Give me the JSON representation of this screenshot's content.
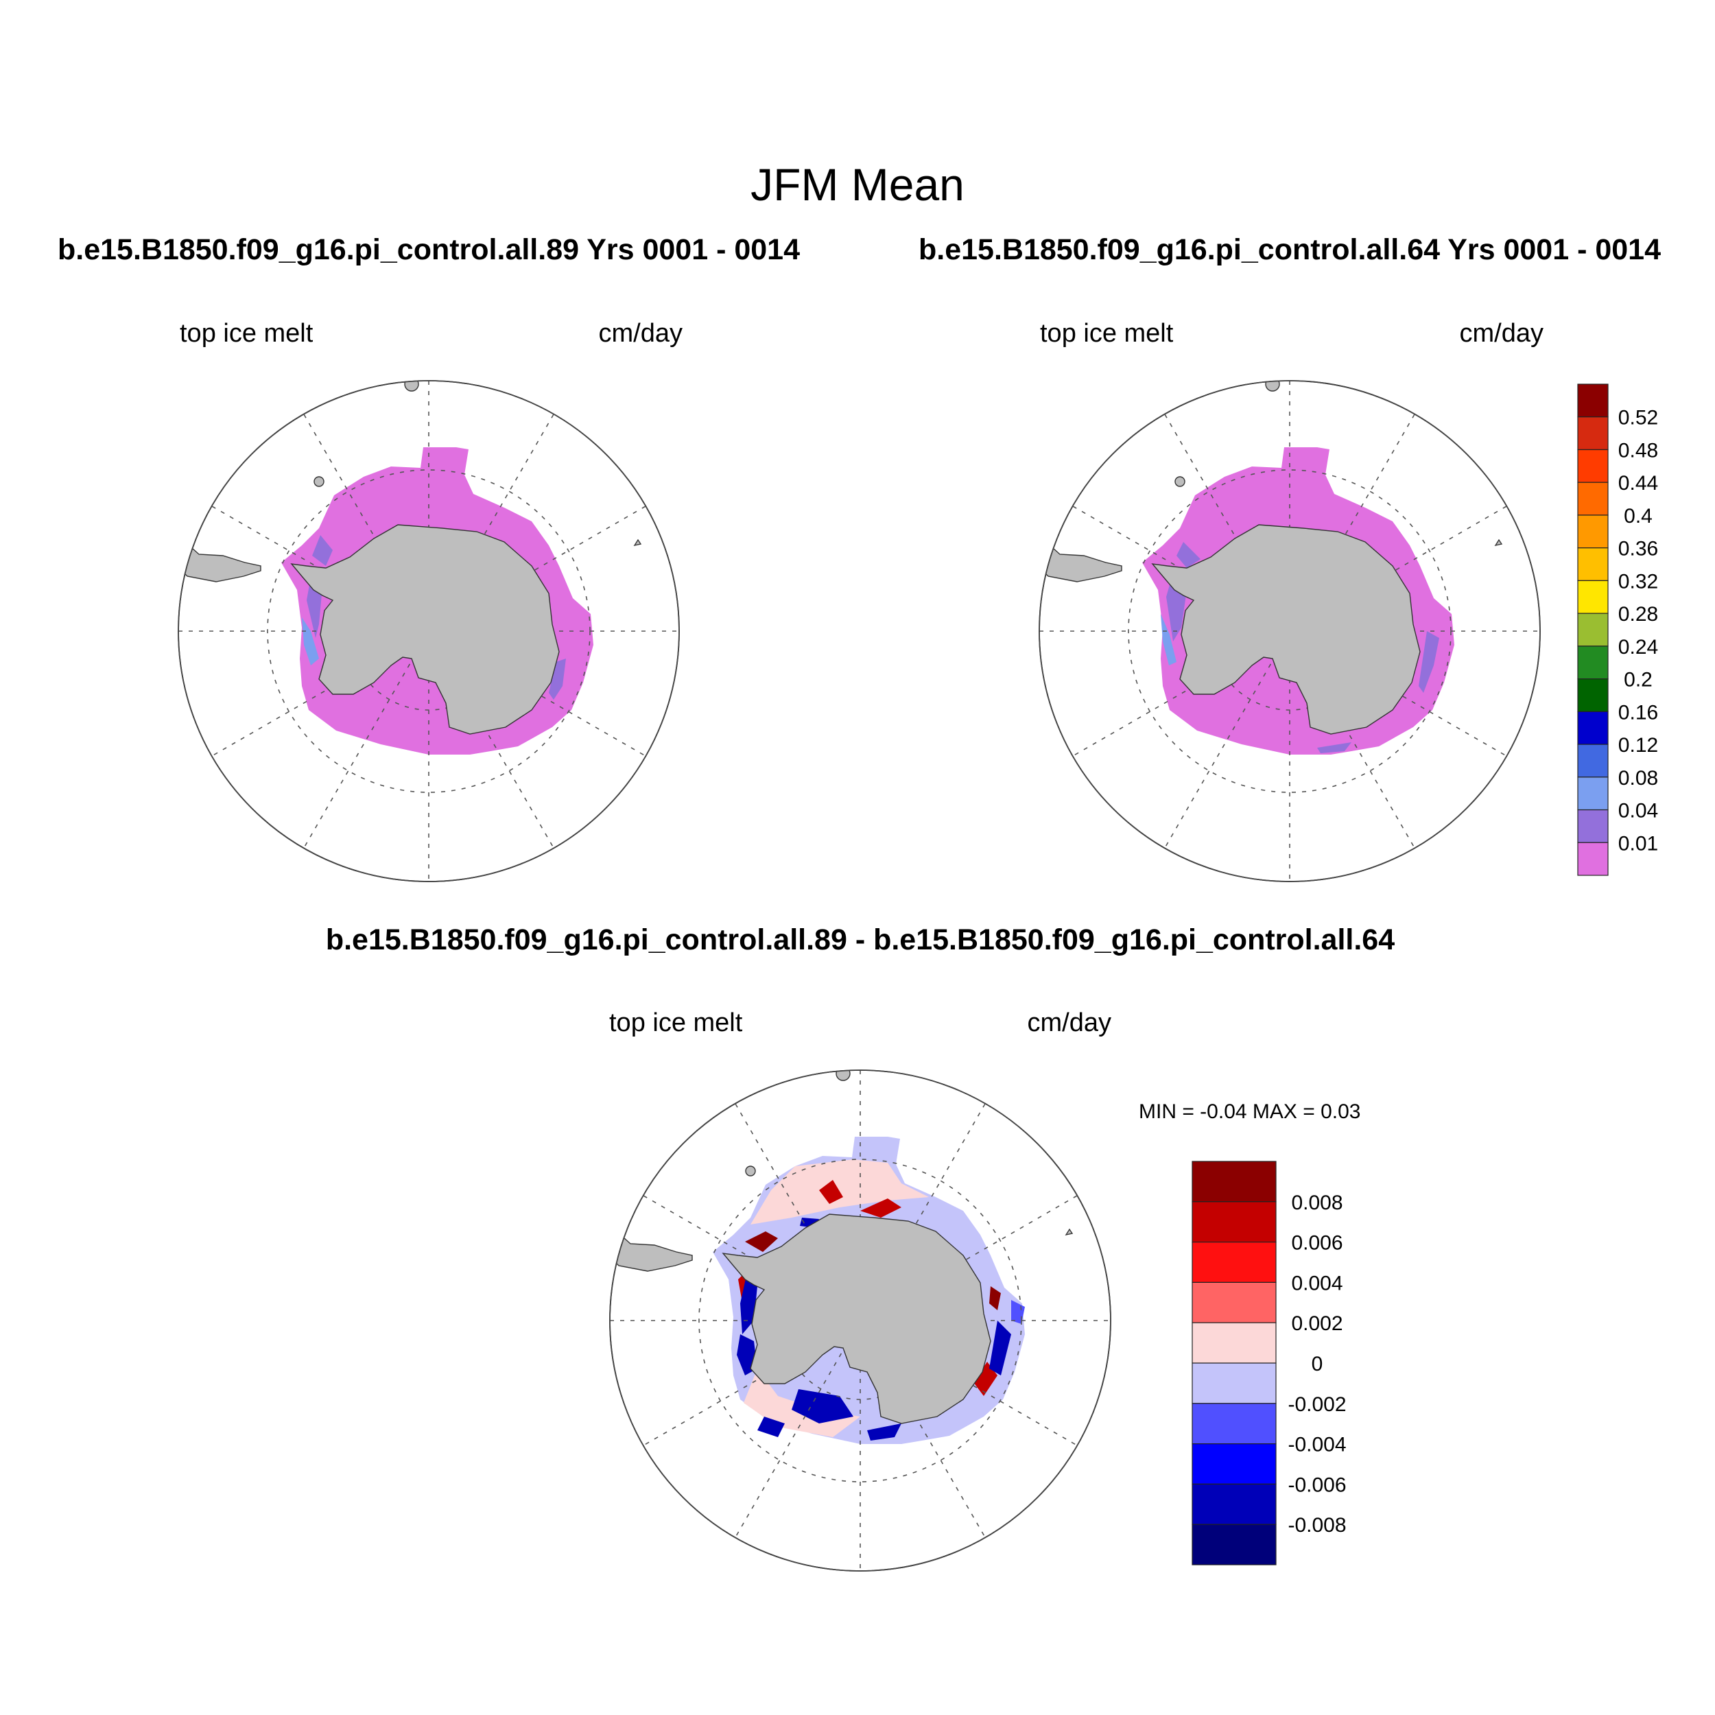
{
  "figure": {
    "title": "JFM Mean",
    "panel_left": {
      "case_title": "b.e15.B1850.f09_g16.pi_control.all.89  Yrs 0001 - 0014",
      "variable": "top ice melt",
      "units": "cm/day"
    },
    "panel_right": {
      "case_title": "b.e15.B1850.f09_g16.pi_control.all.64  Yrs 0001 - 0014",
      "variable": "top ice melt",
      "units": "cm/day"
    },
    "panel_diff": {
      "case_title": "b.e15.B1850.f09_g16.pi_control.all.89 - b.e15.B1850.f09_g16.pi_control.all.64",
      "variable": "top ice melt",
      "units": "cm/day",
      "minmax": "MIN =  -0.04 MAX =   0.03"
    }
  },
  "colorbar_main": {
    "labels": [
      "0.52",
      "0.48",
      "0.44",
      "0.4",
      "0.36",
      "0.32",
      "0.28",
      "0.24",
      "0.2",
      "0.16",
      "0.12",
      "0.08",
      "0.04",
      "0.01"
    ],
    "colors": [
      "#8b0000",
      "#d62a10",
      "#ff3c00",
      "#ff6a00",
      "#ff9900",
      "#ffbf00",
      "#ffe600",
      "#9abe31",
      "#228b22",
      "#006400",
      "#0000cd",
      "#4169e1",
      "#7b9ff0",
      "#9370db",
      "#e070e0"
    ]
  },
  "colorbar_diff": {
    "labels": [
      "0.008",
      "0.006",
      "0.004",
      "0.002",
      "0",
      "-0.002",
      "-0.004",
      "-0.006",
      "-0.008"
    ],
    "colors": [
      "#8b0000",
      "#c40000",
      "#ff1010",
      "#ff6464",
      "#fcd8d8",
      "#c4c4fa",
      "#5050ff",
      "#0000ff",
      "#0000b8",
      "#00007a"
    ]
  },
  "colors": {
    "land": "#bebebe",
    "melt_base": "#e070e0",
    "melt_low": "#9370db"
  }
}
